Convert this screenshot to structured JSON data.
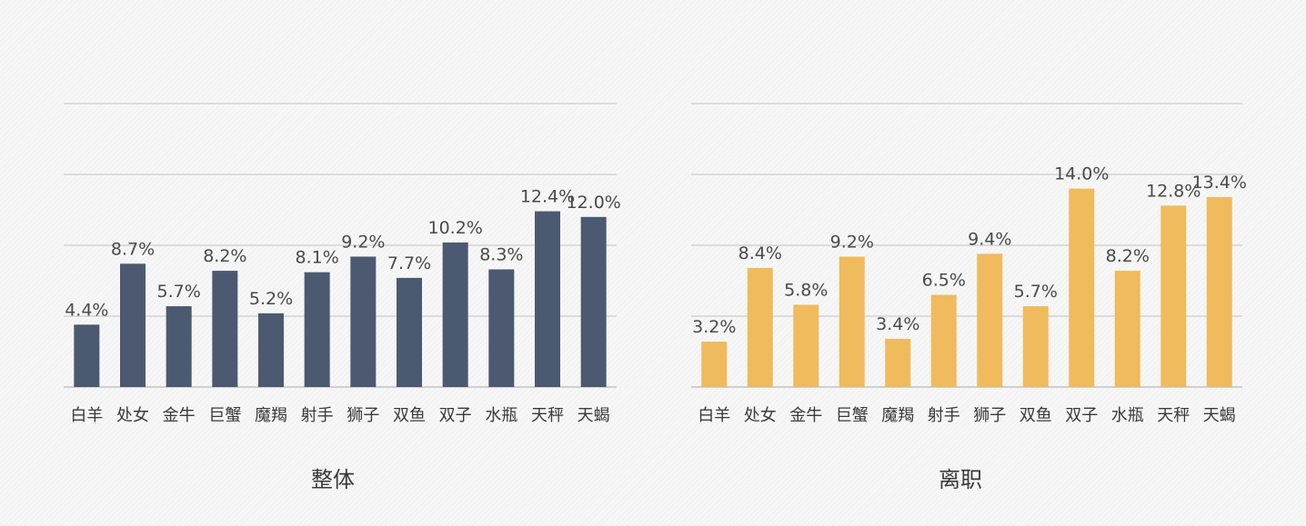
{
  "chart_data": [
    {
      "type": "bar",
      "title": "整体",
      "categories": [
        "白羊",
        "处女",
        "金牛",
        "巨蟹",
        "魔羯",
        "射手",
        "狮子",
        "双鱼",
        "双子",
        "水瓶",
        "天秤",
        "天蝎"
      ],
      "values": [
        4.4,
        8.7,
        5.7,
        8.2,
        5.2,
        8.1,
        9.2,
        7.7,
        10.2,
        8.3,
        12.4,
        12.0
      ],
      "labels": [
        "4.4%",
        "8.7%",
        "5.7%",
        "8.2%",
        "5.2%",
        "8.1%",
        "9.2%",
        "7.7%",
        "10.2%",
        "8.3%",
        "12.4%",
        "12.0%"
      ],
      "ylim": [
        0,
        20
      ],
      "gridlines": [
        5,
        10,
        15,
        20
      ],
      "color": "#4b5a70",
      "xlabel": "",
      "ylabel": ""
    },
    {
      "type": "bar",
      "title": "离职",
      "categories": [
        "白羊",
        "处女",
        "金牛",
        "巨蟹",
        "魔羯",
        "射手",
        "狮子",
        "双鱼",
        "双子",
        "水瓶",
        "天秤",
        "天蝎"
      ],
      "values": [
        3.2,
        8.4,
        5.8,
        9.2,
        3.4,
        6.5,
        9.4,
        5.7,
        14.0,
        8.2,
        12.8,
        13.4
      ],
      "labels": [
        "3.2%",
        "8.4%",
        "5.8%",
        "9.2%",
        "3.4%",
        "6.5%",
        "9.4%",
        "5.7%",
        "14.0%",
        "8.2%",
        "12.8%",
        "13.4%"
      ],
      "ylim": [
        0,
        20
      ],
      "gridlines": [
        5,
        10,
        15,
        20
      ],
      "color": "#f0bb5d",
      "xlabel": "",
      "ylabel": ""
    }
  ]
}
